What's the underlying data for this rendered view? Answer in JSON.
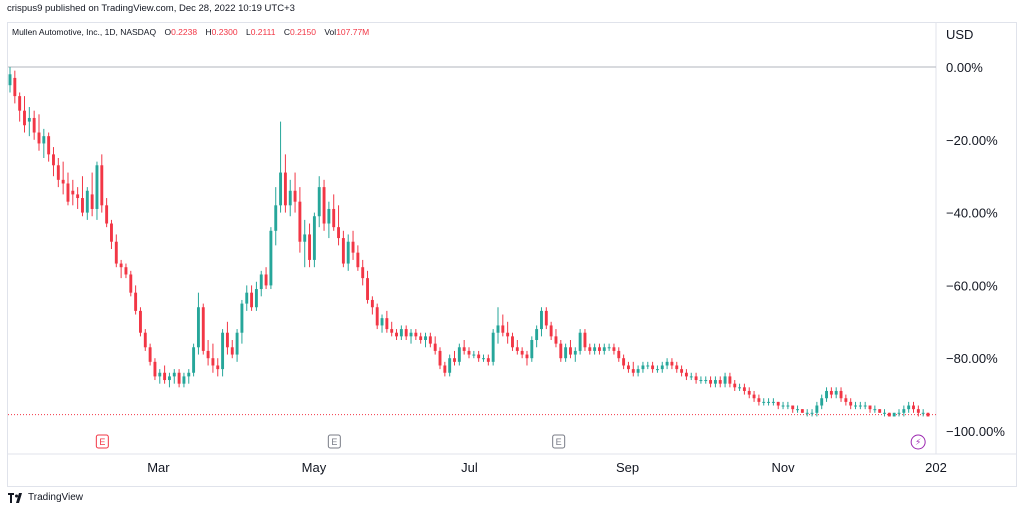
{
  "header": {
    "publisher_line": "crispus9 published on TradingView.com, Dec 28, 2022 10:19 UTC+3"
  },
  "legend": {
    "symbol": "Mullen Automotive, Inc., 1D, NASDAQ",
    "open_label": "O",
    "open": "0.2238",
    "high_label": "H",
    "high": "0.2300",
    "low_label": "L",
    "low": "0.2111",
    "close_label": "C",
    "close": "0.2150",
    "vol_label": "Vol",
    "vol": "107.77M"
  },
  "currency": "USD",
  "footer": {
    "brand": "TradingView"
  },
  "colors": {
    "up": "#26a69a",
    "down": "#f23645",
    "zero_line": "#b2b5be",
    "last_line": "#f23645",
    "earnings_red": "#f23645",
    "earnings_gray": "#787b86",
    "dividend_purple": "#9c27b0"
  },
  "chart_data": {
    "type": "candlestick",
    "ylabel": "",
    "ylim": [
      -100,
      0
    ],
    "y_ticks": [
      "0.00%",
      "−20.00%",
      "−40.00%",
      "−60.00%",
      "−80.00%",
      "−100.00%"
    ],
    "y_tick_values": [
      0,
      -20,
      -40,
      -60,
      -80,
      -100
    ],
    "x_ticks": [
      "Mar",
      "May",
      "Jul",
      "Sep",
      "Nov",
      "202"
    ],
    "x_tick_positions_days": [
      59,
      120,
      181,
      243,
      304,
      364
    ],
    "last_value_pct": -95.5,
    "events": [
      {
        "type": "earnings",
        "label": "E",
        "day": 37,
        "color": "red"
      },
      {
        "type": "earnings",
        "label": "E",
        "day": 128,
        "color": "gray"
      },
      {
        "type": "earnings",
        "label": "E",
        "day": 216,
        "color": "gray"
      },
      {
        "type": "split",
        "label": "⚡",
        "day": 357,
        "color": "purple"
      }
    ],
    "candles": [
      [
        0,
        -5,
        0,
        -7,
        -2
      ],
      [
        1,
        -3,
        -1,
        -10,
        -8
      ],
      [
        2,
        -8,
        -7,
        -15,
        -12
      ],
      [
        3,
        -12,
        -8,
        -18,
        -16
      ],
      [
        4,
        -15,
        -11,
        -19,
        -14
      ],
      [
        5,
        -14,
        -12,
        -20,
        -18
      ],
      [
        6,
        -18,
        -13,
        -23,
        -21
      ],
      [
        7,
        -21,
        -17,
        -25,
        -19
      ],
      [
        8,
        -19,
        -18,
        -26,
        -24
      ],
      [
        9,
        -24,
        -22,
        -30,
        -27
      ],
      [
        10,
        -27,
        -25,
        -33,
        -31
      ],
      [
        11,
        -31,
        -26,
        -35,
        -32
      ],
      [
        12,
        -32,
        -29,
        -38,
        -37
      ],
      [
        13,
        -34,
        -31,
        -38,
        -35
      ],
      [
        14,
        -35,
        -33,
        -39,
        -36
      ],
      [
        15,
        -36,
        -30,
        -41,
        -40
      ],
      [
        16,
        -40,
        -33,
        -42,
        -34
      ],
      [
        17,
        -35,
        -29,
        -41,
        -39
      ],
      [
        18,
        -39,
        -26,
        -42,
        -27
      ],
      [
        19,
        -27,
        -24,
        -40,
        -38
      ],
      [
        20,
        -38,
        -36,
        -44,
        -43
      ],
      [
        21,
        -43,
        -42,
        -50,
        -48
      ],
      [
        22,
        -48,
        -46,
        -55,
        -54
      ],
      [
        23,
        -54,
        -53,
        -58,
        -55
      ],
      [
        24,
        -55,
        -54,
        -58,
        -57
      ],
      [
        25,
        -57,
        -56,
        -63,
        -62
      ],
      [
        26,
        -62,
        -60,
        -68,
        -67
      ],
      [
        27,
        -67,
        -66,
        -74,
        -73
      ],
      [
        28,
        -73,
        -72,
        -78,
        -77
      ],
      [
        29,
        -77,
        -76,
        -82,
        -81
      ],
      [
        30,
        -81,
        -80,
        -86,
        -85
      ],
      [
        31,
        -85,
        -83,
        -87,
        -84
      ],
      [
        32,
        -84,
        -82,
        -87,
        -86
      ],
      [
        33,
        -86,
        -84,
        -88,
        -85
      ],
      [
        34,
        -85,
        -83,
        -87,
        -84
      ],
      [
        35,
        -84,
        -83,
        -88,
        -87
      ],
      [
        36,
        -87,
        -84,
        -88,
        -85
      ],
      [
        37,
        -85,
        -83,
        -87,
        -84
      ],
      [
        38,
        -84,
        -76,
        -85,
        -77
      ],
      [
        39,
        -77,
        -62,
        -79,
        -66
      ],
      [
        40,
        -66,
        -65,
        -79,
        -78
      ],
      [
        41,
        -78,
        -75,
        -82,
        -80
      ],
      [
        42,
        -80,
        -76,
        -84,
        -82
      ],
      [
        43,
        -82,
        -80,
        -85,
        -83
      ],
      [
        44,
        -83,
        -72,
        -85,
        -73
      ],
      [
        45,
        -73,
        -70,
        -79,
        -77
      ],
      [
        46,
        -77,
        -75,
        -80,
        -79
      ],
      [
        47,
        -79,
        -72,
        -81,
        -73
      ],
      [
        48,
        -73,
        -64,
        -76,
        -65
      ],
      [
        49,
        -65,
        -60,
        -67,
        -62
      ],
      [
        50,
        -62,
        -60,
        -67,
        -66
      ],
      [
        51,
        -66,
        -59,
        -67,
        -61
      ],
      [
        52,
        -61,
        -56,
        -63,
        -57
      ],
      [
        53,
        -57,
        -55,
        -61,
        -60
      ],
      [
        54,
        -60,
        -44,
        -61,
        -45
      ],
      [
        55,
        -45,
        -33,
        -49,
        -38
      ],
      [
        56,
        -38,
        -15,
        -40,
        -29
      ],
      [
        57,
        -29,
        -24,
        -40,
        -38
      ],
      [
        58,
        -38,
        -31,
        -41,
        -34
      ],
      [
        59,
        -34,
        -29,
        -40,
        -37
      ],
      [
        60,
        -37,
        -33,
        -51,
        -48
      ],
      [
        61,
        -48,
        -42,
        -55,
        -46
      ],
      [
        62,
        -46,
        -43,
        -55,
        -53
      ],
      [
        63,
        -53,
        -40,
        -55,
        -41
      ],
      [
        64,
        -41,
        -30,
        -44,
        -33
      ],
      [
        65,
        -33,
        -31,
        -45,
        -43
      ],
      [
        66,
        -43,
        -37,
        -47,
        -39
      ],
      [
        67,
        -39,
        -35,
        -45,
        -44
      ],
      [
        68,
        -44,
        -38,
        -49,
        -47
      ],
      [
        69,
        -47,
        -45,
        -55,
        -54
      ],
      [
        70,
        -54,
        -46,
        -56,
        -48
      ],
      [
        71,
        -48,
        -45,
        -53,
        -51
      ],
      [
        72,
        -51,
        -49,
        -56,
        -55
      ],
      [
        73,
        -55,
        -53,
        -60,
        -58
      ],
      [
        74,
        -58,
        -56,
        -65,
        -64
      ],
      [
        75,
        -64,
        -63,
        -68,
        -66
      ],
      [
        76,
        -66,
        -65,
        -72,
        -71
      ],
      [
        77,
        -71,
        -68,
        -73,
        -69
      ],
      [
        78,
        -69,
        -67,
        -73,
        -72
      ],
      [
        79,
        -72,
        -70,
        -74,
        -73
      ],
      [
        80,
        -73,
        -72,
        -75,
        -74
      ],
      [
        81,
        -74,
        -71,
        -75,
        -72
      ],
      [
        82,
        -72,
        -71,
        -75,
        -74
      ],
      [
        83,
        -74,
        -72,
        -76,
        -73
      ],
      [
        84,
        -73,
        -72,
        -75,
        -74
      ],
      [
        85,
        -74,
        -73,
        -76,
        -75
      ],
      [
        86,
        -75,
        -73,
        -77,
        -74
      ],
      [
        87,
        -74,
        -73,
        -77,
        -76
      ],
      [
        88,
        -76,
        -74,
        -79,
        -78
      ],
      [
        89,
        -78,
        -77,
        -83,
        -82
      ],
      [
        90,
        -82,
        -81,
        -85,
        -84
      ],
      [
        91,
        -84,
        -79,
        -85,
        -80
      ],
      [
        92,
        -80,
        -78,
        -82,
        -81
      ],
      [
        93,
        -81,
        -76,
        -82,
        -77
      ],
      [
        94,
        -77,
        -75,
        -79,
        -78
      ],
      [
        95,
        -78,
        -77,
        -80,
        -79
      ],
      [
        96,
        -79,
        -78,
        -80,
        -79
      ],
      [
        97,
        -79,
        -78,
        -81,
        -80
      ],
      [
        98,
        -80,
        -79,
        -81,
        -80
      ],
      [
        99,
        -80,
        -79,
        -82,
        -81
      ],
      [
        100,
        -81,
        -72,
        -82,
        -73
      ],
      [
        101,
        -73,
        -66,
        -76,
        -71
      ],
      [
        102,
        -71,
        -68,
        -74,
        -73
      ],
      [
        103,
        -73,
        -70,
        -76,
        -74
      ],
      [
        104,
        -74,
        -73,
        -78,
        -77
      ],
      [
        105,
        -77,
        -75,
        -79,
        -78
      ],
      [
        106,
        -78,
        -77,
        -80,
        -79
      ],
      [
        107,
        -79,
        -78,
        -82,
        -80
      ],
      [
        108,
        -80,
        -74,
        -81,
        -75
      ],
      [
        109,
        -75,
        -71,
        -77,
        -72
      ],
      [
        110,
        -72,
        -66,
        -74,
        -67
      ],
      [
        111,
        -67,
        -66,
        -72,
        -71
      ],
      [
        112,
        -71,
        -70,
        -75,
        -74
      ],
      [
        113,
        -74,
        -72,
        -77,
        -76
      ],
      [
        114,
        -76,
        -75,
        -81,
        -80
      ],
      [
        115,
        -80,
        -76,
        -81,
        -77
      ],
      [
        116,
        -77,
        -75,
        -80,
        -79
      ],
      [
        117,
        -79,
        -77,
        -81,
        -78
      ],
      [
        118,
        -78,
        -72,
        -79,
        -73
      ],
      [
        119,
        -73,
        -72,
        -78,
        -77
      ],
      [
        120,
        -77,
        -76,
        -79,
        -78
      ],
      [
        121,
        -78,
        -76,
        -79,
        -77
      ],
      [
        122,
        -77,
        -76,
        -79,
        -78
      ],
      [
        123,
        -78,
        -76,
        -79,
        -77
      ],
      [
        124,
        -77,
        -76,
        -78,
        -77
      ],
      [
        125,
        -77,
        -76,
        -79,
        -78
      ],
      [
        126,
        -78,
        -77,
        -81,
        -80
      ],
      [
        127,
        -80,
        -79,
        -83,
        -82
      ],
      [
        128,
        -82,
        -81,
        -84,
        -83
      ],
      [
        129,
        -83,
        -81,
        -85,
        -84
      ],
      [
        130,
        -84,
        -82,
        -85,
        -83
      ],
      [
        131,
        -83,
        -81,
        -84,
        -82
      ],
      [
        132,
        -82,
        -81,
        -83,
        -82
      ],
      [
        133,
        -82,
        -81,
        -84,
        -83
      ],
      [
        134,
        -83,
        -82,
        -84,
        -83
      ],
      [
        135,
        -83,
        -81,
        -84,
        -82
      ],
      [
        136,
        -82,
        -80,
        -83,
        -81
      ],
      [
        137,
        -81,
        -80,
        -83,
        -82
      ],
      [
        138,
        -82,
        -81,
        -84,
        -83
      ],
      [
        139,
        -83,
        -82,
        -85,
        -84
      ],
      [
        140,
        -84,
        -83,
        -86,
        -85
      ],
      [
        141,
        -85,
        -84,
        -86,
        -85
      ],
      [
        142,
        -85,
        -84,
        -87,
        -86
      ],
      [
        143,
        -86,
        -85,
        -87,
        -86
      ],
      [
        144,
        -86,
        -85,
        -87,
        -86
      ],
      [
        145,
        -86,
        -85,
        -88,
        -87
      ],
      [
        146,
        -87,
        -85,
        -88,
        -86
      ],
      [
        147,
        -86,
        -85,
        -88,
        -87
      ],
      [
        148,
        -87,
        -84,
        -88,
        -85
      ],
      [
        149,
        -85,
        -84,
        -88,
        -87
      ],
      [
        150,
        -87,
        -86,
        -89,
        -88
      ],
      [
        151,
        -88,
        -87,
        -89,
        -88
      ],
      [
        152,
        -88,
        -87,
        -90,
        -89
      ],
      [
        153,
        -89,
        -88,
        -91,
        -90
      ],
      [
        154,
        -90,
        -89,
        -92,
        -91
      ],
      [
        155,
        -91,
        -90,
        -93,
        -92
      ],
      [
        156,
        -92,
        -91,
        -93,
        -92
      ],
      [
        157,
        -92,
        -91,
        -93,
        -92
      ],
      [
        158,
        -92,
        -91,
        -93,
        -92
      ],
      [
        159,
        -92,
        -92,
        -94,
        -93
      ],
      [
        160,
        -93,
        -92,
        -94,
        -93
      ],
      [
        161,
        -93,
        -92,
        -94,
        -93
      ],
      [
        162,
        -93,
        -93,
        -95,
        -94
      ],
      [
        163,
        -94,
        -93,
        -95,
        -94
      ],
      [
        164,
        -94,
        -94,
        -95,
        -95
      ],
      [
        165,
        -95,
        -94,
        -96,
        -95
      ],
      [
        166,
        -95,
        -94,
        -96,
        -95
      ],
      [
        167,
        -95,
        -92,
        -96,
        -93
      ],
      [
        168,
        -93,
        -90,
        -94,
        -91
      ],
      [
        169,
        -91,
        -88,
        -92,
        -89
      ],
      [
        170,
        -89,
        -88,
        -91,
        -90
      ],
      [
        171,
        -90,
        -88,
        -91,
        -89
      ],
      [
        172,
        -89,
        -88,
        -92,
        -91
      ],
      [
        173,
        -91,
        -90,
        -93,
        -92
      ],
      [
        174,
        -92,
        -91,
        -94,
        -93
      ],
      [
        175,
        -93,
        -92,
        -94,
        -93
      ],
      [
        176,
        -93,
        -92,
        -94,
        -93
      ],
      [
        177,
        -93,
        -92,
        -94,
        -93
      ],
      [
        178,
        -93,
        -93,
        -95,
        -94
      ],
      [
        179,
        -94,
        -93,
        -95,
        -94
      ],
      [
        180,
        -94,
        -94,
        -95,
        -95
      ],
      [
        181,
        -95,
        -94,
        -96,
        -95
      ],
      [
        182,
        -95,
        -95,
        -96,
        -96
      ],
      [
        183,
        -96,
        -95,
        -96,
        -95
      ],
      [
        184,
        -95,
        -94,
        -96,
        -95
      ],
      [
        185,
        -95,
        -93,
        -96,
        -94
      ],
      [
        186,
        -94,
        -92,
        -95,
        -93
      ],
      [
        187,
        -93,
        -92,
        -95,
        -94
      ],
      [
        188,
        -94,
        -93,
        -96,
        -95
      ],
      [
        189,
        -95,
        -94,
        -96,
        -95
      ],
      [
        190,
        -95,
        -95,
        -96,
        -96
      ]
    ]
  }
}
